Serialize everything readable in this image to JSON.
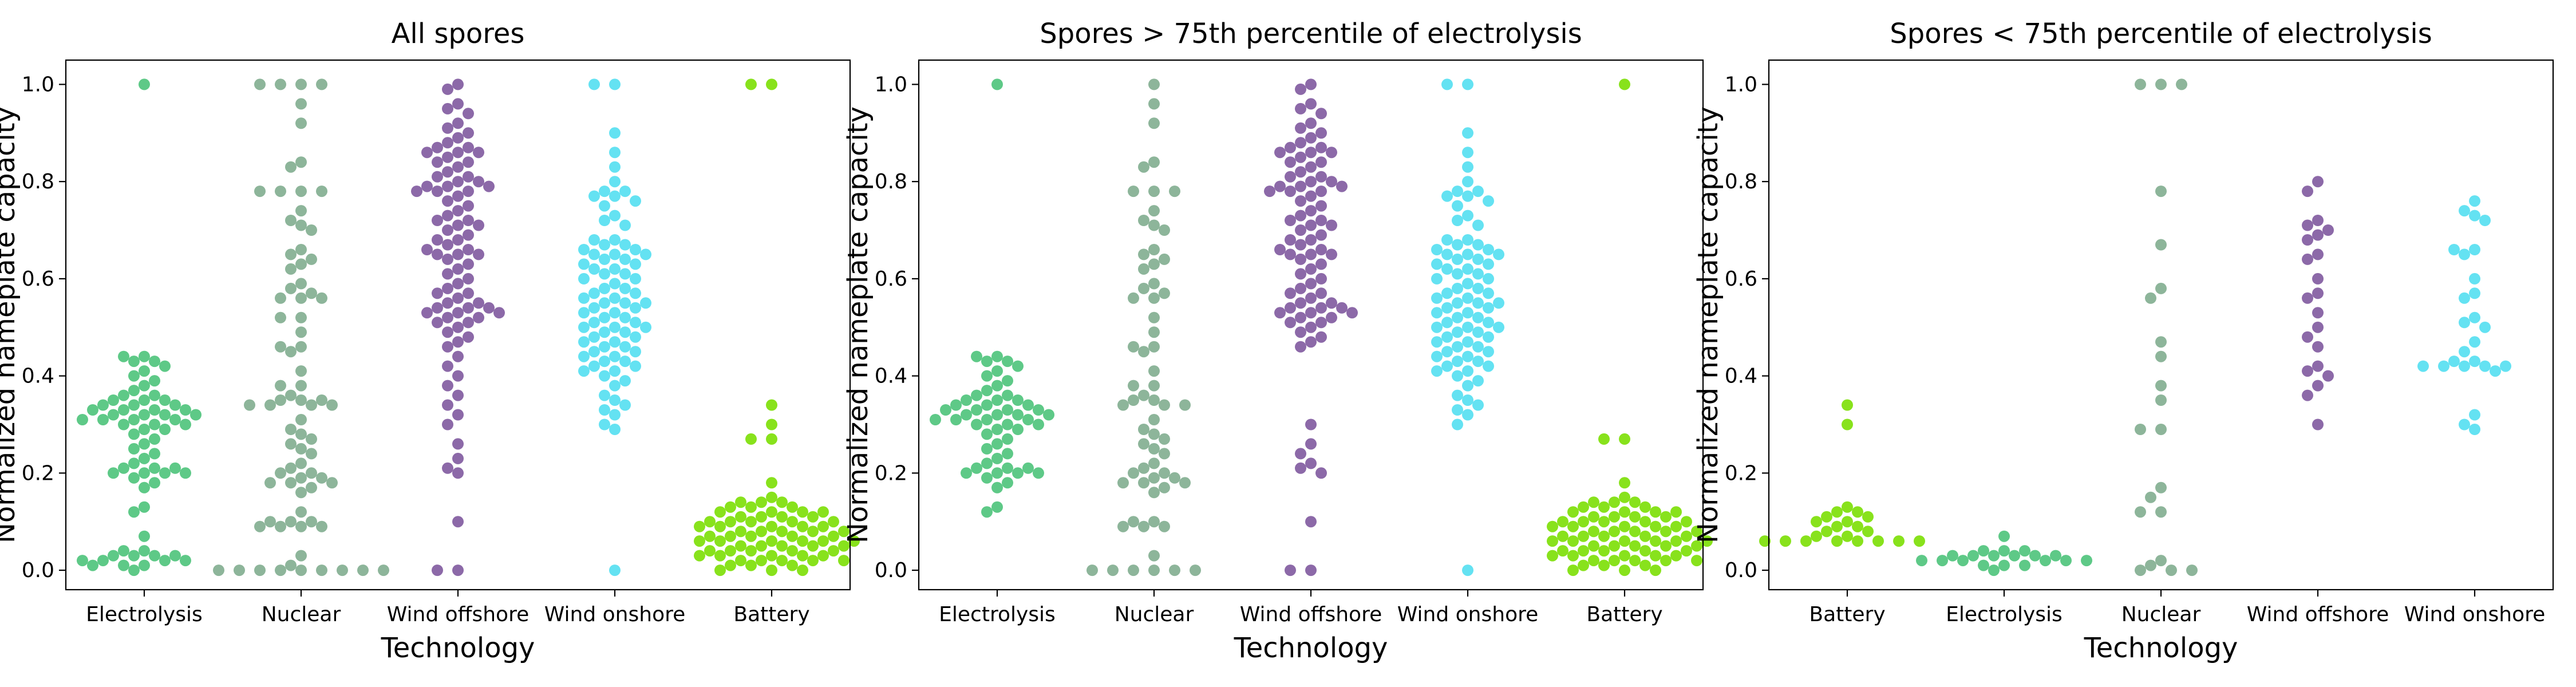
{
  "colors": {
    "Electrolysis": "#5ec987",
    "Nuclear": "#8db59a",
    "Wind offshore": "#8c69a8",
    "Wind onshore": "#64e2f2",
    "Battery": "#88e21c"
  },
  "chart_data": [
    {
      "type": "scatter",
      "subtype": "swarm",
      "title": "All spores",
      "xlabel": "Technology",
      "ylabel": "Normalized nameplate capacity",
      "ylim": [
        -0.04,
        1.05
      ],
      "yticks": [
        "0.0",
        "0.2",
        "0.4",
        "0.6",
        "0.8",
        "1.0"
      ],
      "categories": [
        "Electrolysis",
        "Nuclear",
        "Wind offshore",
        "Wind onshore",
        "Battery"
      ],
      "series": [
        {
          "category": "Electrolysis",
          "values": [
            1.0,
            0.44,
            0.44,
            0.43,
            0.43,
            0.42,
            0.41,
            0.4,
            0.39,
            0.38,
            0.37,
            0.36,
            0.36,
            0.35,
            0.35,
            0.35,
            0.34,
            0.34,
            0.34,
            0.33,
            0.33,
            0.33,
            0.33,
            0.32,
            0.32,
            0.32,
            0.32,
            0.31,
            0.31,
            0.31,
            0.31,
            0.3,
            0.3,
            0.3,
            0.29,
            0.29,
            0.28,
            0.27,
            0.26,
            0.25,
            0.24,
            0.23,
            0.22,
            0.21,
            0.21,
            0.21,
            0.2,
            0.2,
            0.2,
            0.2,
            0.19,
            0.18,
            0.17,
            0.13,
            0.12,
            0.07,
            0.04,
            0.04,
            0.03,
            0.03,
            0.03,
            0.03,
            0.02,
            0.02,
            0.02,
            0.02,
            0.01,
            0.01,
            0.01,
            0.0
          ]
        },
        {
          "category": "Nuclear",
          "values": [
            1.0,
            1.0,
            1.0,
            1.0,
            0.96,
            0.92,
            0.84,
            0.83,
            0.78,
            0.78,
            0.78,
            0.78,
            0.74,
            0.72,
            0.71,
            0.7,
            0.66,
            0.65,
            0.64,
            0.63,
            0.62,
            0.59,
            0.58,
            0.57,
            0.56,
            0.56,
            0.56,
            0.52,
            0.52,
            0.49,
            0.46,
            0.46,
            0.45,
            0.41,
            0.38,
            0.38,
            0.36,
            0.35,
            0.35,
            0.35,
            0.34,
            0.34,
            0.34,
            0.34,
            0.31,
            0.29,
            0.28,
            0.27,
            0.26,
            0.25,
            0.24,
            0.22,
            0.21,
            0.2,
            0.2,
            0.19,
            0.19,
            0.18,
            0.18,
            0.18,
            0.17,
            0.16,
            0.12,
            0.1,
            0.1,
            0.1,
            0.09,
            0.09,
            0.09,
            0.09,
            0.03,
            0.01,
            0.0,
            0.0,
            0.0,
            0.0,
            0.0,
            0.0,
            0.0,
            0.0,
            0.0
          ]
        },
        {
          "category": "Wind offshore",
          "values": [
            1.0,
            0.99,
            0.96,
            0.95,
            0.94,
            0.92,
            0.91,
            0.9,
            0.89,
            0.88,
            0.87,
            0.87,
            0.86,
            0.86,
            0.86,
            0.85,
            0.84,
            0.84,
            0.83,
            0.82,
            0.81,
            0.81,
            0.8,
            0.8,
            0.79,
            0.79,
            0.79,
            0.78,
            0.78,
            0.78,
            0.77,
            0.76,
            0.75,
            0.74,
            0.73,
            0.72,
            0.72,
            0.71,
            0.71,
            0.7,
            0.69,
            0.68,
            0.68,
            0.67,
            0.66,
            0.66,
            0.65,
            0.65,
            0.65,
            0.64,
            0.63,
            0.62,
            0.61,
            0.6,
            0.59,
            0.58,
            0.57,
            0.57,
            0.56,
            0.55,
            0.55,
            0.54,
            0.54,
            0.54,
            0.53,
            0.53,
            0.53,
            0.52,
            0.52,
            0.51,
            0.51,
            0.5,
            0.49,
            0.48,
            0.47,
            0.46,
            0.44,
            0.42,
            0.4,
            0.38,
            0.36,
            0.34,
            0.32,
            0.3,
            0.26,
            0.23,
            0.21,
            0.2,
            0.1,
            0.0,
            0.0
          ]
        },
        {
          "category": "Wind onshore",
          "values": [
            1.0,
            1.0,
            0.9,
            0.86,
            0.83,
            0.8,
            0.78,
            0.78,
            0.77,
            0.77,
            0.76,
            0.75,
            0.73,
            0.72,
            0.71,
            0.68,
            0.68,
            0.67,
            0.67,
            0.66,
            0.66,
            0.65,
            0.65,
            0.65,
            0.64,
            0.64,
            0.63,
            0.63,
            0.62,
            0.62,
            0.61,
            0.61,
            0.6,
            0.6,
            0.59,
            0.58,
            0.58,
            0.57,
            0.57,
            0.56,
            0.56,
            0.55,
            0.55,
            0.55,
            0.54,
            0.54,
            0.53,
            0.53,
            0.52,
            0.52,
            0.51,
            0.51,
            0.5,
            0.5,
            0.5,
            0.49,
            0.49,
            0.48,
            0.48,
            0.47,
            0.47,
            0.46,
            0.46,
            0.45,
            0.45,
            0.44,
            0.44,
            0.43,
            0.43,
            0.42,
            0.42,
            0.41,
            0.41,
            0.4,
            0.39,
            0.38,
            0.36,
            0.35,
            0.34,
            0.33,
            0.32,
            0.3,
            0.29,
            0.0
          ]
        },
        {
          "category": "Battery",
          "values": [
            1.0,
            1.0,
            0.34,
            0.3,
            0.27,
            0.27,
            0.18,
            0.15,
            0.14,
            0.14,
            0.14,
            0.13,
            0.13,
            0.13,
            0.12,
            0.12,
            0.12,
            0.12,
            0.11,
            0.11,
            0.11,
            0.11,
            0.1,
            0.1,
            0.1,
            0.1,
            0.1,
            0.09,
            0.09,
            0.09,
            0.09,
            0.09,
            0.08,
            0.08,
            0.08,
            0.08,
            0.08,
            0.07,
            0.07,
            0.07,
            0.07,
            0.07,
            0.06,
            0.06,
            0.06,
            0.06,
            0.06,
            0.06,
            0.05,
            0.05,
            0.05,
            0.05,
            0.05,
            0.04,
            0.04,
            0.04,
            0.04,
            0.04,
            0.03,
            0.03,
            0.03,
            0.03,
            0.03,
            0.02,
            0.02,
            0.02,
            0.02,
            0.02,
            0.01,
            0.01,
            0.01,
            0.0,
            0.0,
            0.0
          ]
        }
      ]
    },
    {
      "type": "scatter",
      "subtype": "swarm",
      "title": "Spores > 75th percentile of electrolysis",
      "xlabel": "Technology",
      "ylabel": "Normalized nameplate capacity",
      "ylim": [
        -0.04,
        1.05
      ],
      "yticks": [
        "0.0",
        "0.2",
        "0.4",
        "0.6",
        "0.8",
        "1.0"
      ],
      "categories": [
        "Electrolysis",
        "Nuclear",
        "Wind offshore",
        "Wind onshore",
        "Battery"
      ],
      "series": [
        {
          "category": "Electrolysis",
          "values": [
            1.0,
            0.44,
            0.44,
            0.43,
            0.43,
            0.42,
            0.41,
            0.4,
            0.39,
            0.38,
            0.37,
            0.36,
            0.36,
            0.35,
            0.35,
            0.35,
            0.34,
            0.34,
            0.34,
            0.33,
            0.33,
            0.33,
            0.33,
            0.32,
            0.32,
            0.32,
            0.32,
            0.31,
            0.31,
            0.31,
            0.31,
            0.3,
            0.3,
            0.3,
            0.29,
            0.29,
            0.28,
            0.27,
            0.26,
            0.25,
            0.24,
            0.23,
            0.22,
            0.21,
            0.21,
            0.21,
            0.2,
            0.2,
            0.2,
            0.2,
            0.19,
            0.18,
            0.17,
            0.13,
            0.12
          ]
        },
        {
          "category": "Nuclear",
          "values": [
            1.0,
            0.96,
            0.92,
            0.84,
            0.83,
            0.78,
            0.78,
            0.78,
            0.74,
            0.72,
            0.71,
            0.7,
            0.66,
            0.65,
            0.64,
            0.63,
            0.62,
            0.59,
            0.58,
            0.57,
            0.56,
            0.56,
            0.52,
            0.49,
            0.46,
            0.46,
            0.45,
            0.41,
            0.38,
            0.38,
            0.36,
            0.35,
            0.35,
            0.34,
            0.34,
            0.34,
            0.31,
            0.29,
            0.28,
            0.27,
            0.26,
            0.25,
            0.24,
            0.22,
            0.21,
            0.2,
            0.2,
            0.19,
            0.19,
            0.18,
            0.18,
            0.18,
            0.17,
            0.16,
            0.1,
            0.1,
            0.09,
            0.09,
            0.09,
            0.03,
            0.0,
            0.0,
            0.0,
            0.0,
            0.0,
            0.0
          ]
        },
        {
          "category": "Wind offshore",
          "values": [
            1.0,
            0.99,
            0.96,
            0.95,
            0.94,
            0.92,
            0.91,
            0.9,
            0.89,
            0.88,
            0.87,
            0.87,
            0.86,
            0.86,
            0.86,
            0.85,
            0.84,
            0.84,
            0.83,
            0.82,
            0.81,
            0.81,
            0.8,
            0.8,
            0.79,
            0.79,
            0.79,
            0.78,
            0.78,
            0.78,
            0.77,
            0.76,
            0.75,
            0.74,
            0.73,
            0.72,
            0.72,
            0.71,
            0.71,
            0.7,
            0.69,
            0.68,
            0.68,
            0.67,
            0.66,
            0.66,
            0.65,
            0.65,
            0.65,
            0.64,
            0.63,
            0.62,
            0.61,
            0.6,
            0.59,
            0.58,
            0.57,
            0.57,
            0.56,
            0.55,
            0.55,
            0.54,
            0.54,
            0.54,
            0.53,
            0.53,
            0.53,
            0.52,
            0.52,
            0.51,
            0.51,
            0.5,
            0.49,
            0.48,
            0.47,
            0.46,
            0.3,
            0.26,
            0.24,
            0.22,
            0.21,
            0.2,
            0.1,
            0.0,
            0.0
          ]
        },
        {
          "category": "Wind onshore",
          "values": [
            1.0,
            1.0,
            0.9,
            0.86,
            0.83,
            0.8,
            0.78,
            0.78,
            0.77,
            0.77,
            0.76,
            0.75,
            0.73,
            0.72,
            0.71,
            0.68,
            0.68,
            0.67,
            0.67,
            0.66,
            0.66,
            0.65,
            0.65,
            0.65,
            0.64,
            0.64,
            0.63,
            0.63,
            0.62,
            0.62,
            0.61,
            0.61,
            0.6,
            0.6,
            0.59,
            0.58,
            0.58,
            0.57,
            0.57,
            0.56,
            0.56,
            0.55,
            0.55,
            0.55,
            0.54,
            0.54,
            0.53,
            0.53,
            0.52,
            0.52,
            0.51,
            0.51,
            0.5,
            0.5,
            0.5,
            0.49,
            0.49,
            0.48,
            0.48,
            0.47,
            0.47,
            0.46,
            0.46,
            0.45,
            0.45,
            0.44,
            0.44,
            0.43,
            0.43,
            0.42,
            0.42,
            0.41,
            0.41,
            0.4,
            0.39,
            0.38,
            0.36,
            0.35,
            0.34,
            0.33,
            0.32,
            0.3,
            0.0
          ]
        },
        {
          "category": "Battery",
          "values": [
            1.0,
            0.27,
            0.27,
            0.18,
            0.15,
            0.14,
            0.14,
            0.14,
            0.13,
            0.13,
            0.13,
            0.12,
            0.12,
            0.12,
            0.12,
            0.11,
            0.11,
            0.11,
            0.11,
            0.1,
            0.1,
            0.1,
            0.1,
            0.1,
            0.09,
            0.09,
            0.09,
            0.09,
            0.09,
            0.08,
            0.08,
            0.08,
            0.08,
            0.08,
            0.07,
            0.07,
            0.07,
            0.07,
            0.07,
            0.06,
            0.06,
            0.06,
            0.06,
            0.06,
            0.06,
            0.05,
            0.05,
            0.05,
            0.05,
            0.05,
            0.04,
            0.04,
            0.04,
            0.04,
            0.04,
            0.03,
            0.03,
            0.03,
            0.03,
            0.03,
            0.02,
            0.02,
            0.02,
            0.02,
            0.02,
            0.01,
            0.01,
            0.01,
            0.0,
            0.0,
            0.0
          ]
        }
      ]
    },
    {
      "type": "scatter",
      "subtype": "swarm",
      "title": "Spores < 75th percentile of electrolysis",
      "xlabel": "Technology",
      "ylabel": "Normalized nameplate capacity",
      "ylim": [
        -0.04,
        1.05
      ],
      "yticks": [
        "0.0",
        "0.2",
        "0.4",
        "0.6",
        "0.8",
        "1.0"
      ],
      "categories": [
        "Battery",
        "Electrolysis",
        "Nuclear",
        "Wind offshore",
        "Wind onshore"
      ],
      "series": [
        {
          "category": "Battery",
          "values": [
            0.34,
            0.3,
            0.13,
            0.12,
            0.12,
            0.11,
            0.11,
            0.1,
            0.1,
            0.09,
            0.09,
            0.08,
            0.08,
            0.07,
            0.07,
            0.06,
            0.06,
            0.06,
            0.06,
            0.06,
            0.06,
            0.06,
            0.06
          ]
        },
        {
          "category": "Electrolysis",
          "values": [
            0.07,
            0.04,
            0.04,
            0.04,
            0.03,
            0.03,
            0.03,
            0.03,
            0.03,
            0.03,
            0.02,
            0.02,
            0.02,
            0.02,
            0.02,
            0.02,
            0.01,
            0.01,
            0.01,
            0.0
          ]
        },
        {
          "category": "Nuclear",
          "values": [
            1.0,
            1.0,
            1.0,
            0.78,
            0.67,
            0.58,
            0.56,
            0.47,
            0.44,
            0.38,
            0.35,
            0.29,
            0.29,
            0.17,
            0.15,
            0.12,
            0.12,
            0.02,
            0.01,
            0.0,
            0.0,
            0.0
          ]
        },
        {
          "category": "Wind offshore",
          "values": [
            0.8,
            0.78,
            0.72,
            0.71,
            0.7,
            0.69,
            0.68,
            0.65,
            0.64,
            0.6,
            0.57,
            0.56,
            0.53,
            0.5,
            0.48,
            0.46,
            0.42,
            0.41,
            0.4,
            0.38,
            0.36,
            0.3
          ]
        },
        {
          "category": "Wind onshore",
          "values": [
            0.76,
            0.74,
            0.73,
            0.72,
            0.66,
            0.66,
            0.65,
            0.6,
            0.57,
            0.56,
            0.52,
            0.51,
            0.5,
            0.47,
            0.45,
            0.43,
            0.43,
            0.42,
            0.42,
            0.42,
            0.42,
            0.42,
            0.41,
            0.32,
            0.3,
            0.29
          ]
        }
      ]
    }
  ]
}
